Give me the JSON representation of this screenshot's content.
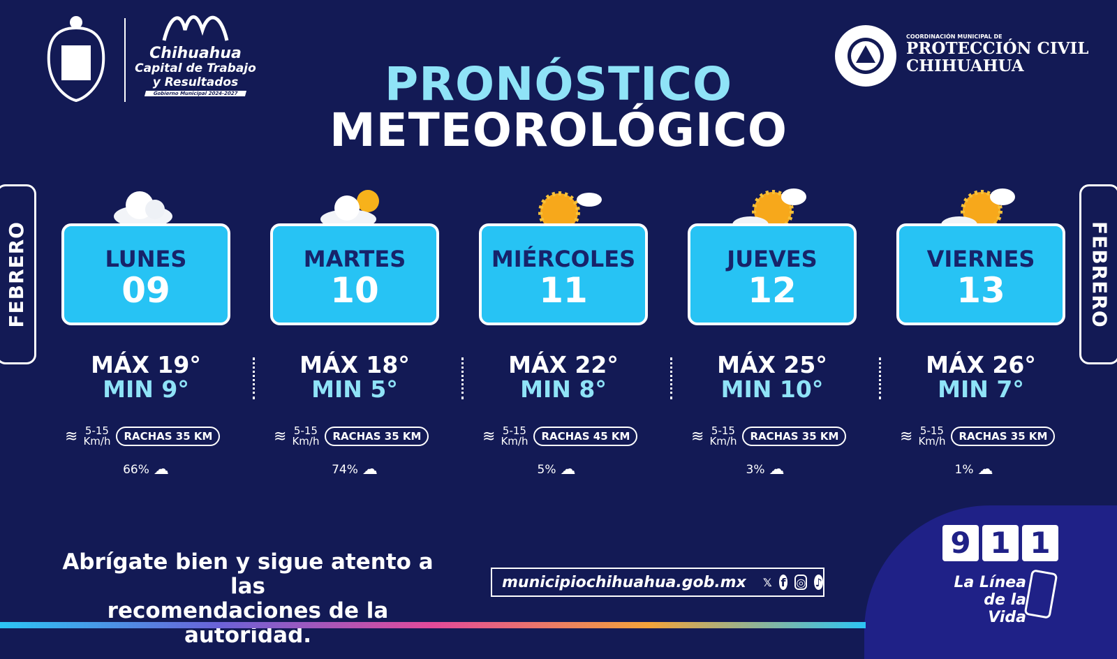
{
  "header": {
    "logo_left": {
      "title": "Chihuahua",
      "subtitle1": "Capital de Trabajo",
      "subtitle2": "y Resultados",
      "tag": "Gobierno Municipal 2024-2027"
    },
    "logo_right": {
      "small": "COORDINACIÓN MUNICIPAL DE",
      "line1": "PROTECCIÓN CIVIL",
      "line2": "CHIHUAHUA"
    },
    "title_line1": "PRONÓSTICO",
    "title_line2": "METEOROLÓGICO"
  },
  "month_left": "FEBRERO",
  "month_right": "FEBRERO",
  "days": [
    {
      "name": "LUNES",
      "date": "09",
      "icon": "cloud-icon",
      "max": "MÁX 19°",
      "min": "MIN 9°",
      "wind": "5-15",
      "wind_unit": "Km/h",
      "gusts": "RACHAS 35 KM",
      "rain": "66%"
    },
    {
      "name": "MARTES",
      "date": "10",
      "icon": "partly-cloudy-icon",
      "max": "MÁX 18°",
      "min": "MIN 5°",
      "wind": "5-15",
      "wind_unit": "Km/h",
      "gusts": "RACHAS 35 KM",
      "rain": "74%"
    },
    {
      "name": "MIÉRCOLES",
      "date": "11",
      "icon": "sun-small-cloud-icon",
      "max": "MÁX 22°",
      "min": "MIN 8°",
      "wind": "5-15",
      "wind_unit": "Km/h",
      "gusts": "RACHAS 45 KM",
      "rain": "5%"
    },
    {
      "name": "JUEVES",
      "date": "12",
      "icon": "sun-clouds-icon",
      "max": "MÁX 25°",
      "min": "MIN 10°",
      "wind": "5-15",
      "wind_unit": "Km/h",
      "gusts": "RACHAS 35 KM",
      "rain": "3%"
    },
    {
      "name": "VIERNES",
      "date": "13",
      "icon": "sun-clouds-icon",
      "max": "MÁX 26°",
      "min": "MIN 7°",
      "wind": "5-15",
      "wind_unit": "Km/h",
      "gusts": "RACHAS 35 KM",
      "rain": "1%"
    }
  ],
  "footer": {
    "message_line1": "Abrígate bien y sigue atento a las",
    "message_line2": "recomendaciones de la autoridad.",
    "website": "municipiochihuahua.gob.mx",
    "social": [
      "x-icon",
      "facebook-icon",
      "instagram-icon",
      "tiktok-icon"
    ],
    "emergency": {
      "digits": [
        "9",
        "1",
        "1"
      ],
      "line1": "La Línea",
      "line2": "de la Vida"
    }
  },
  "colors": {
    "background": "#131a55",
    "card": "#27c3f4",
    "accent": "#8fe3f7",
    "panel": "#1f2187"
  }
}
